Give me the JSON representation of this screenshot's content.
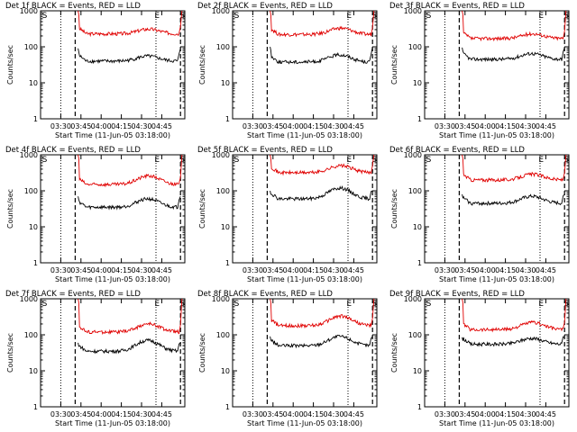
{
  "chart_data": [
    {
      "type": "line",
      "title": "Det 1f BLACK = Events, RED = LLD",
      "xlabel": "Start Time (11-Jun-05 03:18:00)",
      "ylabel": "Counts/sec",
      "yscale": "log",
      "ylim": [
        1,
        1000
      ],
      "xlim": [
        0,
        100
      ],
      "xticks": [
        "03:30",
        "03:45",
        "04:00",
        "04:15",
        "04:30",
        "04:45"
      ],
      "yticks": [
        "1",
        "10",
        "100",
        "1000"
      ],
      "markers": {
        "S": 1,
        "E": 79,
        "S2": 99
      },
      "dotted_lines": [
        14,
        80
      ],
      "dashed_lines": [
        24,
        97
      ],
      "series": [
        {
          "name": "LLD",
          "color": "#e00000",
          "start": 26,
          "end": 98,
          "peak": 1000,
          "base": 230,
          "mid": 310
        },
        {
          "name": "Events",
          "color": "#000000",
          "start": 26,
          "end": 97,
          "peak": 90,
          "base": 40,
          "mid": 55
        }
      ]
    },
    {
      "type": "line",
      "title": "Det 2f BLACK = Events, RED = LLD",
      "xlabel": "Start Time (11-Jun-05 03:18:00)",
      "ylabel": "Counts/sec",
      "yscale": "log",
      "ylim": [
        1,
        1000
      ],
      "xlim": [
        0,
        100
      ],
      "xticks": [
        "03:30",
        "03:45",
        "04:00",
        "04:15",
        "04:30",
        "04:45"
      ],
      "yticks": [
        "1",
        "10",
        "100",
        "1000"
      ],
      "markers": {
        "S": 1,
        "E": 79,
        "S2": 99
      },
      "dotted_lines": [
        14,
        80
      ],
      "dashed_lines": [
        24,
        97
      ],
      "series": [
        {
          "name": "LLD",
          "color": "#e00000",
          "start": 26,
          "end": 98,
          "peak": 1000,
          "base": 220,
          "mid": 330
        },
        {
          "name": "Events",
          "color": "#000000",
          "start": 26,
          "end": 97,
          "peak": 100,
          "base": 38,
          "mid": 60
        }
      ]
    },
    {
      "type": "line",
      "title": "Det 3f BLACK = Events, RED = LLD",
      "xlabel": "Start Time (11-Jun-05 03:18:00)",
      "ylabel": "Counts/sec",
      "yscale": "log",
      "ylim": [
        1,
        1000
      ],
      "xlim": [
        0,
        100
      ],
      "xticks": [
        "03:30",
        "03:45",
        "04:00",
        "04:15",
        "04:30",
        "04:45"
      ],
      "yticks": [
        "1",
        "10",
        "100",
        "1000"
      ],
      "markers": {
        "S": 1,
        "E": 79,
        "S2": 99
      },
      "dotted_lines": [
        14,
        80
      ],
      "dashed_lines": [
        24,
        97
      ],
      "series": [
        {
          "name": "LLD",
          "color": "#e00000",
          "start": 26,
          "end": 98,
          "peak": 1000,
          "base": 170,
          "mid": 230
        },
        {
          "name": "Events",
          "color": "#000000",
          "start": 26,
          "end": 97,
          "peak": 95,
          "base": 45,
          "mid": 65
        }
      ]
    },
    {
      "type": "line",
      "title": "Det 4f BLACK = Events, RED = LLD",
      "xlabel": "Start Time (11-Jun-05 03:18:00)",
      "ylabel": "Counts/sec",
      "yscale": "log",
      "ylim": [
        1,
        1000
      ],
      "xlim": [
        0,
        100
      ],
      "xticks": [
        "03:30",
        "03:45",
        "04:00",
        "04:15",
        "04:30",
        "04:45"
      ],
      "yticks": [
        "1",
        "10",
        "100",
        "1000"
      ],
      "markers": {
        "S": 1,
        "E": 79,
        "S2": 99
      },
      "dotted_lines": [
        14,
        80
      ],
      "dashed_lines": [
        24,
        97
      ],
      "series": [
        {
          "name": "LLD",
          "color": "#e00000",
          "start": 26,
          "end": 98,
          "peak": 1000,
          "base": 150,
          "mid": 260
        },
        {
          "name": "Events",
          "color": "#000000",
          "start": 26,
          "end": 97,
          "peak": 70,
          "base": 35,
          "mid": 60
        }
      ]
    },
    {
      "type": "line",
      "title": "Det 5f BLACK = Events, RED = LLD",
      "xlabel": "Start Time (11-Jun-05 03:18:00)",
      "ylabel": "Counts/sec",
      "yscale": "log",
      "ylim": [
        1,
        1000
      ],
      "xlim": [
        0,
        100
      ],
      "xticks": [
        "03:30",
        "03:45",
        "04:00",
        "04:15",
        "04:30",
        "04:45"
      ],
      "yticks": [
        "1",
        "10",
        "100",
        "1000"
      ],
      "markers": {
        "S": 1,
        "E": 79,
        "S2": 99
      },
      "dotted_lines": [
        14,
        80
      ],
      "dashed_lines": [
        24,
        97
      ],
      "series": [
        {
          "name": "LLD",
          "color": "#e00000",
          "start": 26,
          "end": 98,
          "peak": 1000,
          "base": 320,
          "mid": 500
        },
        {
          "name": "Events",
          "color": "#000000",
          "start": 26,
          "end": 97,
          "peak": 100,
          "base": 60,
          "mid": 120
        }
      ]
    },
    {
      "type": "line",
      "title": "Det 6f BLACK = Events, RED = LLD",
      "xlabel": "Start Time (11-Jun-05 03:18:00)",
      "ylabel": "Counts/sec",
      "yscale": "log",
      "ylim": [
        1,
        1000
      ],
      "xlim": [
        0,
        100
      ],
      "xticks": [
        "03:30",
        "03:45",
        "04:00",
        "04:15",
        "04:30",
        "04:45"
      ],
      "yticks": [
        "1",
        "10",
        "100",
        "1000"
      ],
      "markers": {
        "S": 1,
        "E": 79,
        "S2": 99
      },
      "dotted_lines": [
        14,
        80
      ],
      "dashed_lines": [
        24,
        97
      ],
      "series": [
        {
          "name": "LLD",
          "color": "#e00000",
          "start": 26,
          "end": 98,
          "peak": 1000,
          "base": 200,
          "mid": 290
        },
        {
          "name": "Events",
          "color": "#000000",
          "start": 26,
          "end": 97,
          "peak": 80,
          "base": 45,
          "mid": 70
        }
      ]
    },
    {
      "type": "line",
      "title": "Det 7f BLACK = Events, RED = LLD",
      "xlabel": "Start Time (11-Jun-05 03:18:00)",
      "ylabel": "Counts/sec",
      "yscale": "log",
      "ylim": [
        1,
        1000
      ],
      "xlim": [
        0,
        100
      ],
      "xticks": [
        "03:30",
        "03:45",
        "04:00",
        "04:15",
        "04:30",
        "04:45"
      ],
      "yticks": [
        "1",
        "10",
        "100",
        "1000"
      ],
      "markers": {
        "S": 1,
        "E": 79,
        "S2": 99
      },
      "dotted_lines": [
        14,
        80
      ],
      "dashed_lines": [
        24,
        97
      ],
      "series": [
        {
          "name": "LLD",
          "color": "#e00000",
          "start": 26,
          "end": 98,
          "peak": 1000,
          "base": 120,
          "mid": 200
        },
        {
          "name": "Events",
          "color": "#000000",
          "start": 26,
          "end": 97,
          "peak": 60,
          "base": 35,
          "mid": 70
        }
      ]
    },
    {
      "type": "line",
      "title": "Det 8f BLACK = Events, RED = LLD",
      "xlabel": "Start Time (11-Jun-05 03:18:00)",
      "ylabel": "Counts/sec",
      "yscale": "log",
      "ylim": [
        1,
        1000
      ],
      "xlim": [
        0,
        100
      ],
      "xticks": [
        "03:30",
        "03:45",
        "04:00",
        "04:15",
        "04:30",
        "04:45"
      ],
      "yticks": [
        "1",
        "10",
        "100",
        "1000"
      ],
      "markers": {
        "S": 1,
        "E": 79,
        "S2": 99
      },
      "dotted_lines": [
        14,
        80
      ],
      "dashed_lines": [
        24,
        97
      ],
      "series": [
        {
          "name": "LLD",
          "color": "#e00000",
          "start": 26,
          "end": 98,
          "peak": 1000,
          "base": 180,
          "mid": 330
        },
        {
          "name": "Events",
          "color": "#000000",
          "start": 26,
          "end": 97,
          "peak": 90,
          "base": 50,
          "mid": 90
        }
      ]
    },
    {
      "type": "line",
      "title": "Det 9f BLACK = Events, RED = LLD",
      "xlabel": "Start Time (11-Jun-05 03:18:00)",
      "ylabel": "Counts/sec",
      "yscale": "log",
      "ylim": [
        1,
        1000
      ],
      "xlim": [
        0,
        100
      ],
      "xticks": [
        "03:30",
        "03:45",
        "04:00",
        "04:15",
        "04:30",
        "04:45"
      ],
      "yticks": [
        "1",
        "10",
        "100",
        "1000"
      ],
      "markers": {
        "S": 1,
        "E": 79,
        "S2": 99
      },
      "dotted_lines": [
        14,
        80
      ],
      "dashed_lines": [
        24,
        97
      ],
      "series": [
        {
          "name": "LLD",
          "color": "#e00000",
          "start": 26,
          "end": 98,
          "peak": 1000,
          "base": 140,
          "mid": 220
        },
        {
          "name": "Events",
          "color": "#000000",
          "start": 26,
          "end": 97,
          "peak": 85,
          "base": 55,
          "mid": 80
        }
      ]
    }
  ]
}
